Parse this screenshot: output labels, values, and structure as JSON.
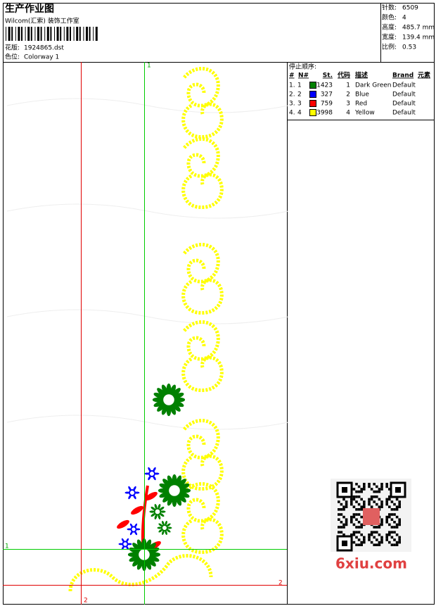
{
  "header": {
    "title": "生产作业图",
    "studio": "Wilcom(汇索) 装饰工作室",
    "design_label": "花版:",
    "design": "1924865.dst",
    "colorway_label": "色位:",
    "colorway": "Colorway 1"
  },
  "info": [
    {
      "label": "针数:",
      "value": "6509"
    },
    {
      "label": "颜色:",
      "value": "4"
    },
    {
      "label": "高度:",
      "value": "485.7 mm"
    },
    {
      "label": "宽度:",
      "value": "139.4 mm"
    },
    {
      "label": "比例:",
      "value": "0.53"
    }
  ],
  "stop_sequence": {
    "title": "停止顺序:",
    "columns": [
      "#",
      "N#",
      "St.",
      "代码",
      "描述",
      "Brand",
      "元素"
    ],
    "rows": [
      [
        "1.",
        "1",
        "1423",
        "1",
        "Dark Green",
        "Default"
      ],
      [
        "2.",
        "2",
        "327",
        "2",
        "Blue",
        "Default"
      ],
      [
        "3.",
        "3",
        "759",
        "3",
        "Red",
        "Default"
      ],
      [
        "4.",
        "4",
        "3998",
        "4",
        "Yellow",
        "Default"
      ]
    ],
    "colors": [
      "#008000",
      "#0000ff",
      "#ff0000",
      "#ffff00"
    ]
  },
  "guides": {
    "top_green": "1",
    "left_green": "1",
    "right_red": "2",
    "bottom_red": "2"
  },
  "watermark": "6xiu.com"
}
